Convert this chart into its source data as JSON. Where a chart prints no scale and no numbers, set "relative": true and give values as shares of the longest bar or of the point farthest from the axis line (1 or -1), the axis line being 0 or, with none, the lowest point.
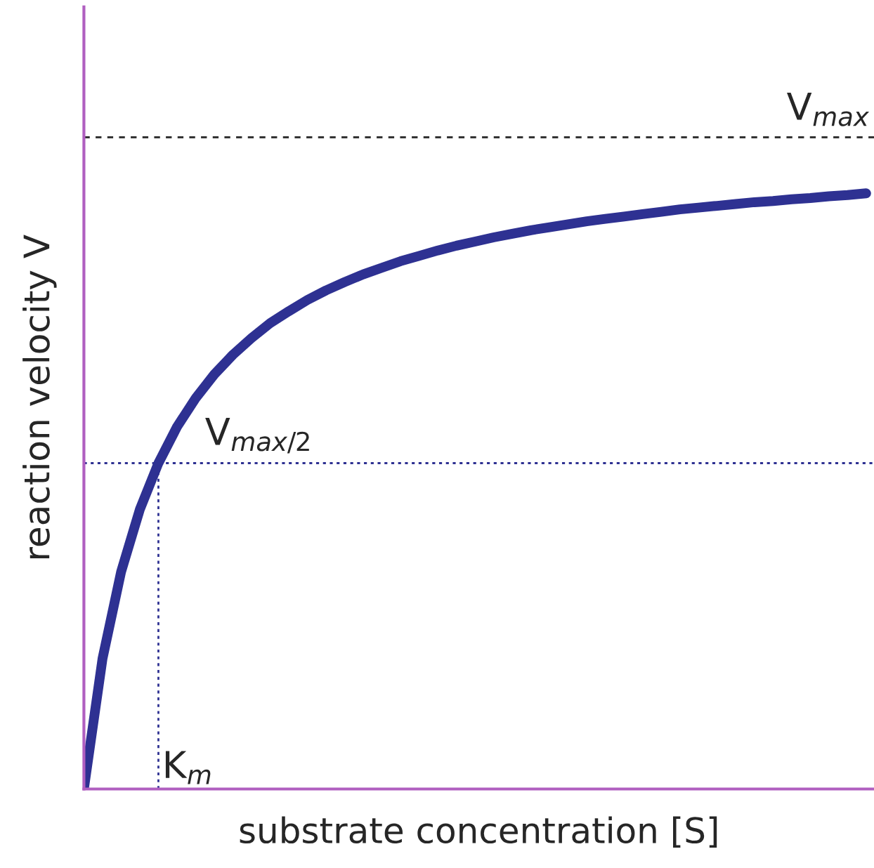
{
  "chart_data": {
    "type": "line",
    "relative": true,
    "xlabel": "substrate concentration [S]",
    "ylabel": "reaction velocity V",
    "categories": [
      null,
      null,
      null,
      null,
      null,
      null,
      null,
      null,
      null,
      null,
      null,
      null,
      null,
      null,
      null,
      null,
      null,
      null,
      null,
      null,
      null,
      null,
      null,
      null,
      null,
      null,
      null,
      null,
      null,
      null,
      null,
      null,
      null,
      null,
      null,
      null,
      null,
      null,
      null,
      null,
      null,
      null,
      null
    ],
    "series": [
      {
        "color": "#2e3192",
        "values": [
          0,
          0.219,
          0.365,
          0.469,
          0.547,
          0.608,
          0.656,
          0.696,
          0.729,
          0.757,
          0.782,
          0.802,
          0.821,
          0.837,
          0.851,
          0.864,
          0.875,
          0.886,
          0.895,
          0.904,
          0.912,
          0.919,
          0.926,
          0.932,
          0.938,
          0.943,
          0.948,
          0.953,
          0.957,
          0.961,
          0.965,
          0.969,
          0.973,
          0.976,
          0.979,
          0.982,
          0.985,
          0.987,
          0.99,
          0.992,
          0.995,
          0.997,
          1
        ]
      }
    ],
    "ref_lines": [
      {
        "axis": "y",
        "value": 1.094,
        "label": "V$_{max}$",
        "color": "#333333",
        "line_style": "dashed"
      },
      {
        "axis": "y",
        "value": 0.547,
        "label": "V$_{max/2}$",
        "color": "#2e3192",
        "line_style": "dotted"
      }
    ],
    "annotations": [
      "K$_{m}$"
    ]
  }
}
